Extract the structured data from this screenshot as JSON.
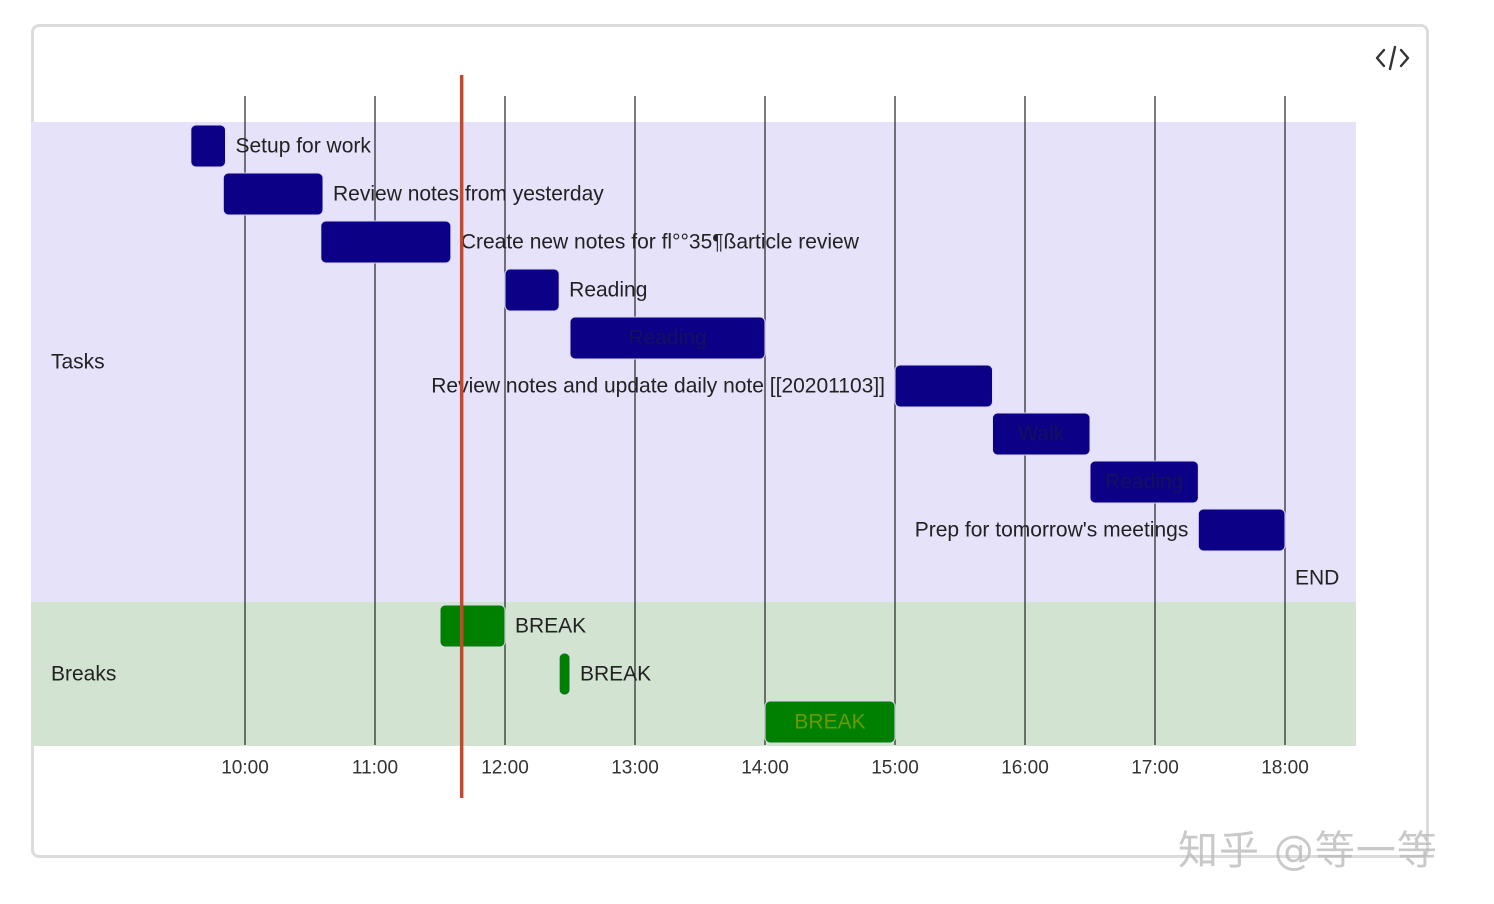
{
  "toolbar": {
    "code_icon": "code-brackets-icon"
  },
  "watermark": "知乎 @等一等",
  "chart_data": {
    "type": "gantt",
    "time_range": [
      "09:10",
      "18:35"
    ],
    "ticks": [
      "10:00",
      "11:00",
      "12:00",
      "13:00",
      "14:00",
      "15:00",
      "16:00",
      "17:00",
      "18:00"
    ],
    "current_time": "11:40",
    "colors": {
      "tasks_bg": "#e6e2fa",
      "breaks_bg": "#d2e3d2",
      "task_bar": "#0c0087",
      "break_bar": "#008000",
      "current_line": "#c4482a",
      "text": "#222222"
    },
    "sections": [
      {
        "name": "Tasks",
        "items": [
          {
            "label": "Setup for work",
            "start": "09:35",
            "end": "09:51",
            "label_pos": "right"
          },
          {
            "label": "Review notes from yesterday",
            "start": "09:50",
            "end": "10:36",
            "label_pos": "right"
          },
          {
            "label": "Create new notes for fl°°35¶ßarticle review",
            "start": "10:35",
            "end": "11:35",
            "label_pos": "right"
          },
          {
            "label": "Reading",
            "start": "12:00",
            "end": "12:25",
            "label_pos": "right"
          },
          {
            "label": "Reading",
            "start": "12:30",
            "end": "14:00",
            "label_pos": "inside"
          },
          {
            "label": "Review notes and update daily note [[20201103]]",
            "start": "15:00",
            "end": "15:45",
            "label_pos": "left"
          },
          {
            "label": "Walk",
            "start": "15:45",
            "end": "16:30",
            "label_pos": "inside"
          },
          {
            "label": "Reading",
            "start": "16:30",
            "end": "17:20",
            "label_pos": "inside"
          },
          {
            "label": "Prep for tomorrow's meetings",
            "start": "17:20",
            "end": "18:00",
            "label_pos": "left"
          },
          {
            "label": "END",
            "start": "18:00",
            "end": "18:00",
            "label_pos": "right"
          }
        ]
      },
      {
        "name": "Breaks",
        "items": [
          {
            "label": "BREAK",
            "start": "11:30",
            "end": "12:00",
            "label_pos": "right"
          },
          {
            "label": "BREAK",
            "start": "12:25",
            "end": "12:30",
            "label_pos": "right"
          },
          {
            "label": "BREAK",
            "start": "14:00",
            "end": "15:00",
            "label_pos": "inside"
          }
        ]
      }
    ]
  }
}
